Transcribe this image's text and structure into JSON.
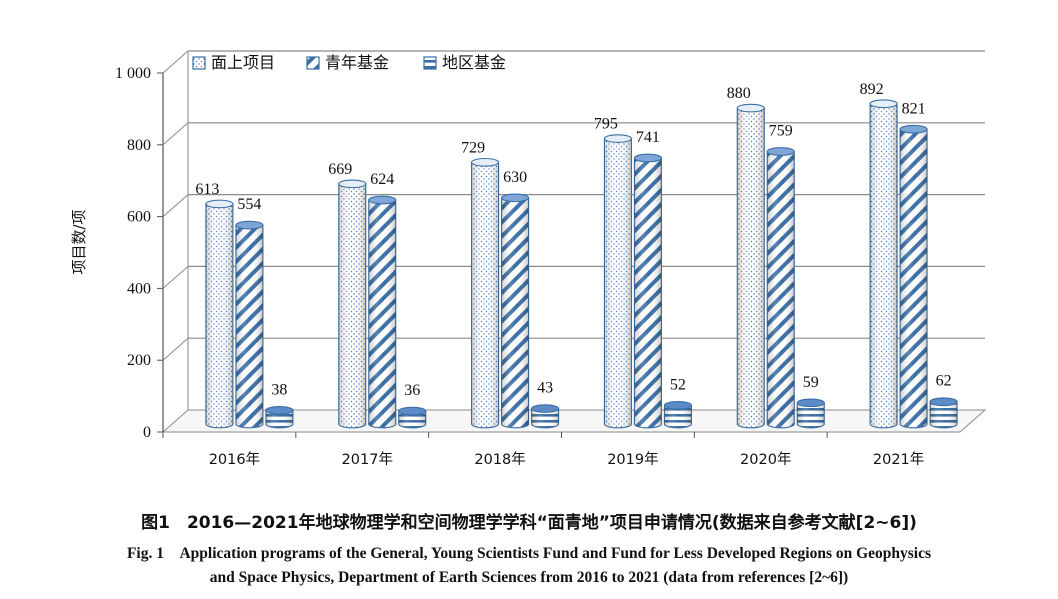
{
  "chart_data": {
    "type": "bar",
    "style": "3d-cylinder",
    "categories": [
      "2016年",
      "2017年",
      "2018年",
      "2019年",
      "2020年",
      "2021年"
    ],
    "series": [
      {
        "name": "面上项目",
        "pattern": "dots",
        "values": [
          613,
          669,
          729,
          795,
          880,
          892
        ]
      },
      {
        "name": "青年基金",
        "pattern": "diagonal",
        "values": [
          554,
          624,
          630,
          741,
          759,
          821
        ]
      },
      {
        "name": "地区基金",
        "pattern": "horizontal",
        "values": [
          38,
          36,
          43,
          52,
          59,
          62
        ]
      }
    ],
    "ylabel": "项目数/项",
    "ylim": [
      0,
      1000
    ],
    "yticks": [
      0,
      200,
      400,
      600,
      800,
      1000
    ],
    "ytick_labels": [
      "0",
      "200",
      "400",
      "600",
      "800",
      "1 000"
    ],
    "legend_position": "top-left",
    "grid": true,
    "colors": {
      "stroke": "#3a6ea5",
      "fill_light": "#ffffff",
      "pattern": "#4a7ebb",
      "grid": "#808080"
    }
  },
  "caption": {
    "cn": "图1　2016—2021年地球物理学和空间物理学学科“面青地”项目申请情况(数据来自参考文献[2~6])",
    "en_line1": "Fig. 1　Application programs of the General, Young Scientists Fund and Fund for Less Developed Regions on Geophysics",
    "en_line2": "and Space Physics, Department of Earth Sciences from 2016 to 2021 (data from references [2~6])"
  }
}
